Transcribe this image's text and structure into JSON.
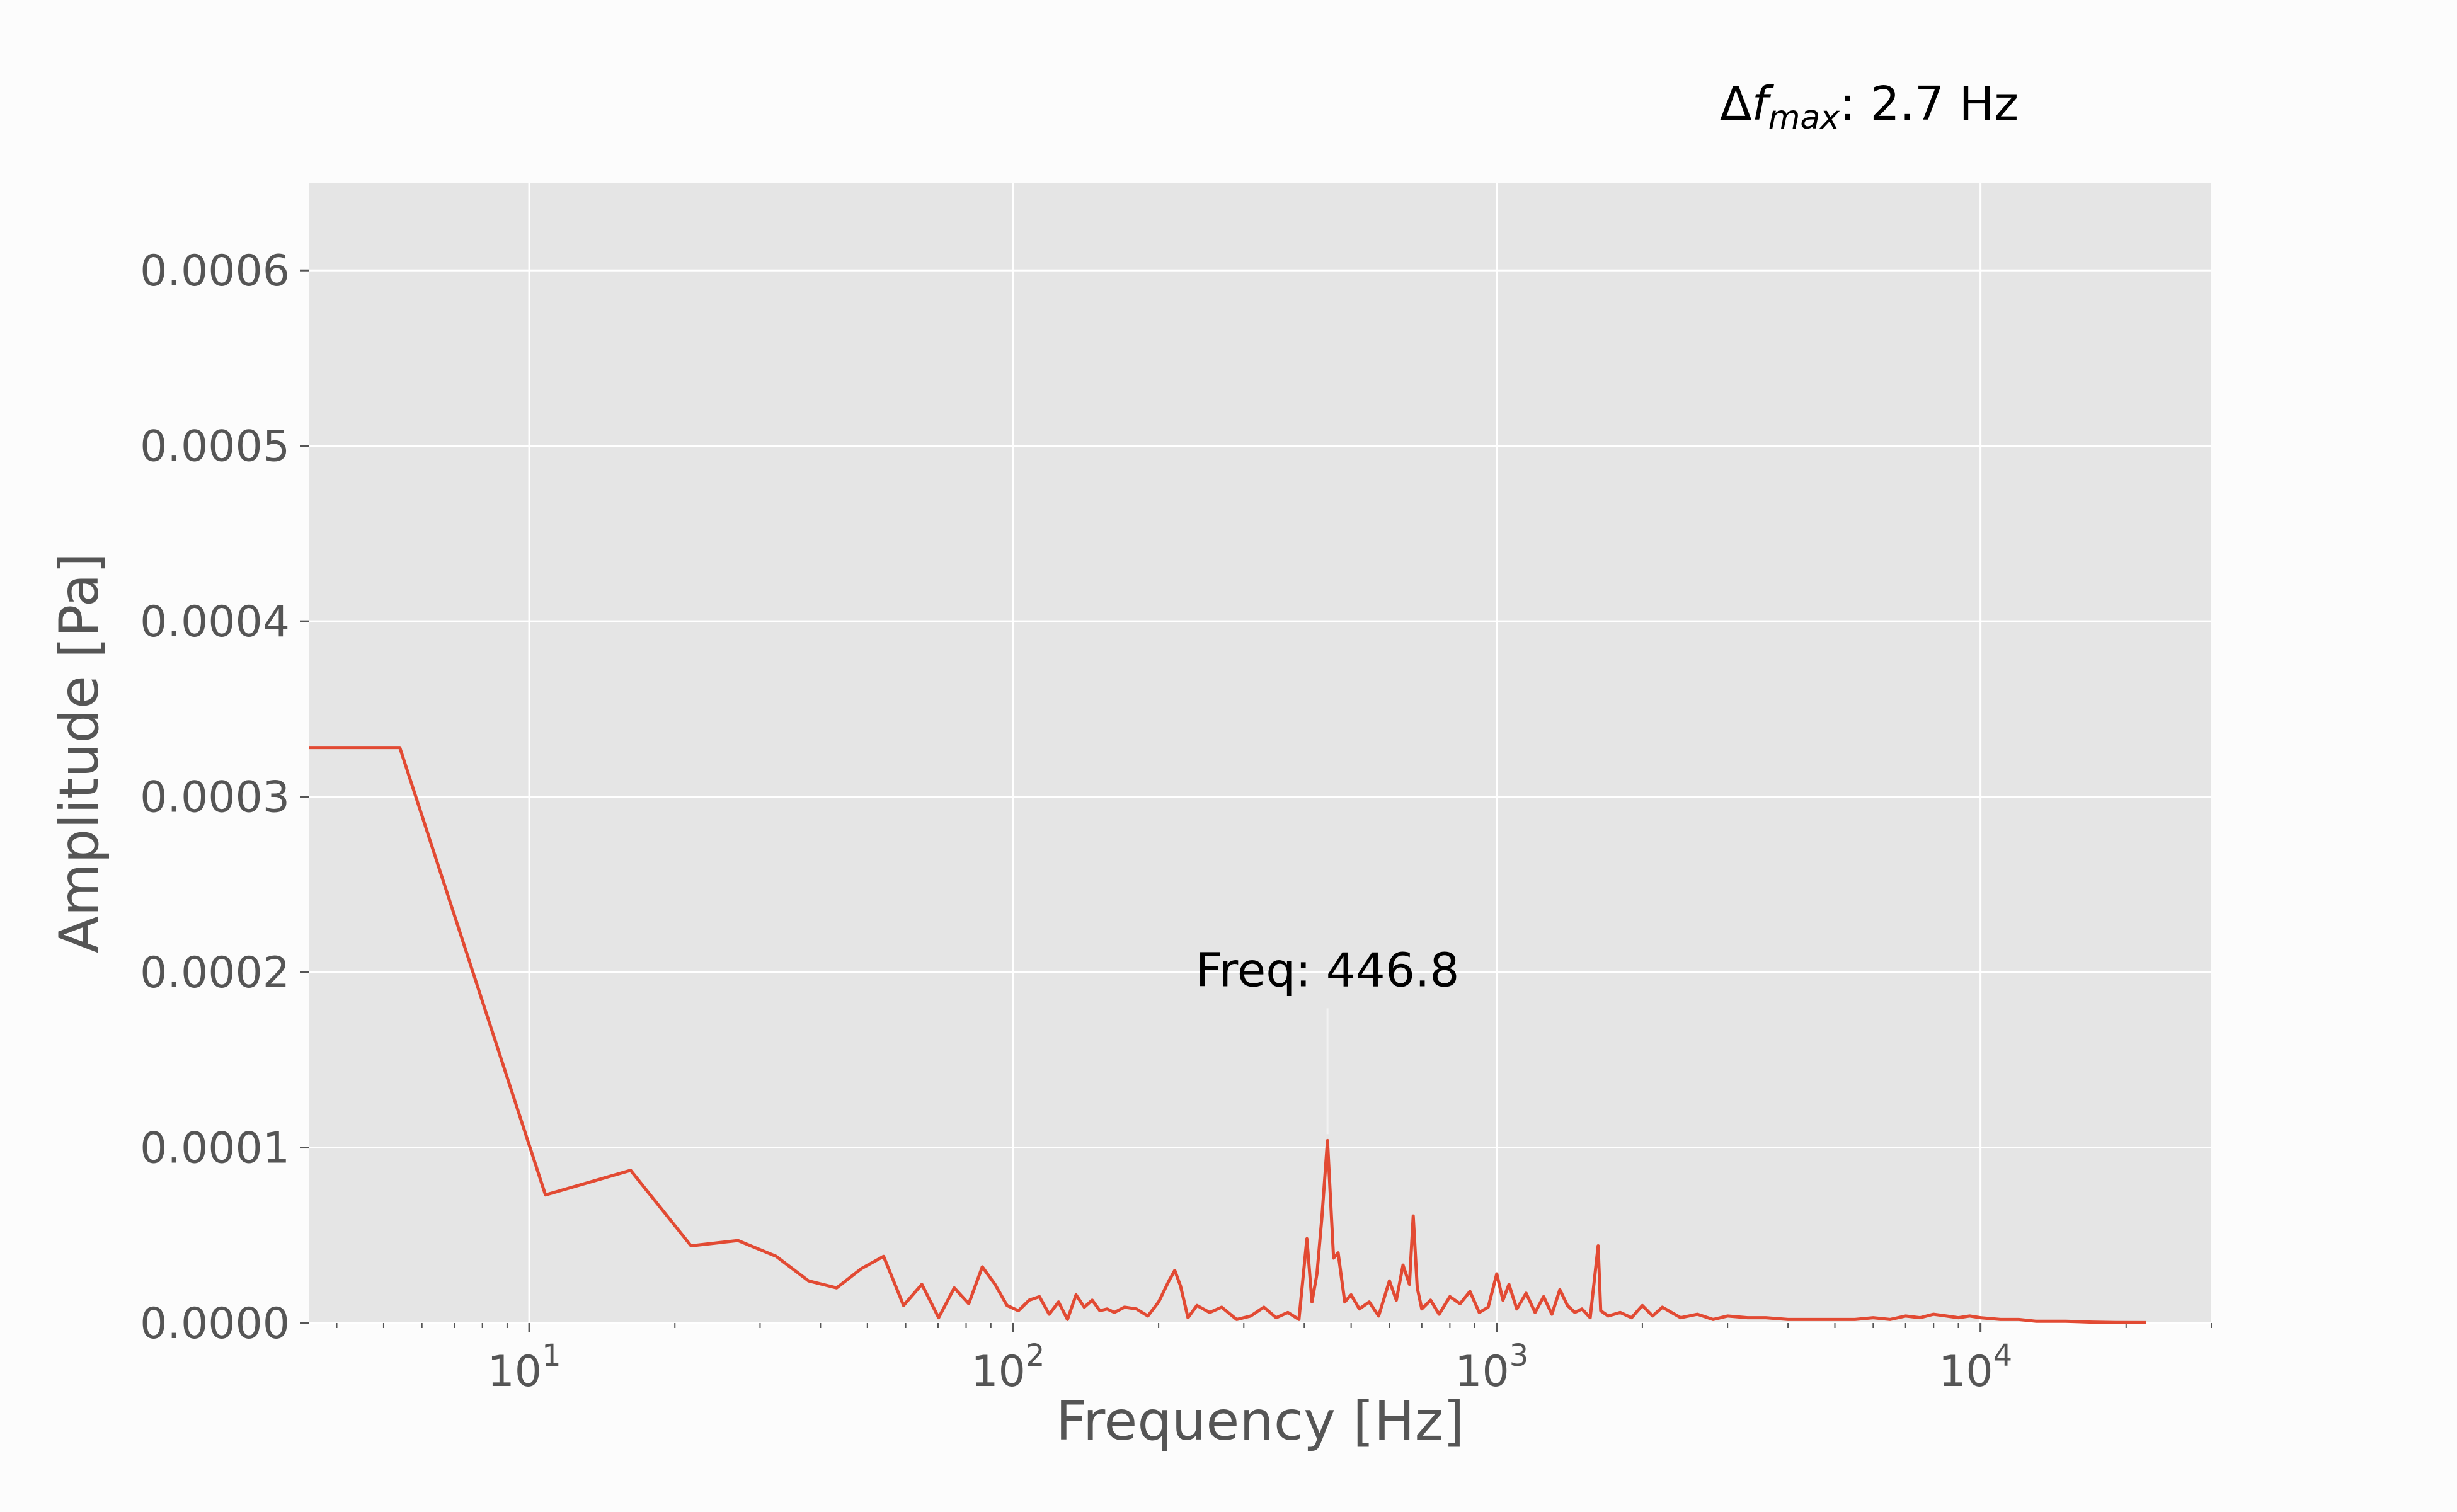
{
  "chart_data": {
    "type": "line",
    "title": "",
    "xlabel": "Frequency [Hz]",
    "ylabel": "Amplitude [Pa]",
    "x_scale": "log",
    "xlim": [
      3.5,
      30000
    ],
    "ylim": [
      0,
      0.00065
    ],
    "x_ticks": [
      {
        "exp": "1"
      },
      {
        "exp": "2"
      },
      {
        "exp": "3"
      },
      {
        "exp": "4"
      }
    ],
    "x_tick_base": "10",
    "y_ticks": [
      "0.0000",
      "0.0001",
      "0.0002",
      "0.0003",
      "0.0004",
      "0.0005",
      "0.0006"
    ],
    "grid": true,
    "colors": {
      "line": "#e24a33",
      "plot_bg": "#e5e5e5",
      "grid": "#ffffff",
      "text": "#555555"
    },
    "series": [
      {
        "x": [
          3.5,
          5.4,
          10.8,
          16.2,
          21.6,
          27.0,
          32.4,
          37.8,
          43.2,
          48.6,
          54.0,
          59.4,
          64.8,
          70.2,
          75.6,
          81.0,
          86.4,
          91.8,
          97.2,
          102.6,
          108.0,
          113.4,
          118.8,
          124.2,
          129.6,
          135.0,
          140.4,
          145.8,
          151.2,
          156.6,
          162.0,
          170.0,
          180.0,
          190.0,
          200.0,
          210.0,
          216.0,
          222.0,
          230.0,
          240.0,
          255.0,
          270.0,
          290.0,
          310.0,
          330.0,
          350.0,
          370.0,
          390.0,
          405.0,
          415.0,
          425.0,
          435.0,
          446.8,
          460.0,
          470.0,
          485.0,
          500.0,
          520.0,
          545.0,
          570.0,
          600.0,
          620.0,
          640.0,
          660.0,
          672.0,
          685.0,
          700.0,
          730.0,
          760.0,
          800.0,
          840.0,
          880.0,
          920.0,
          960.0,
          1000.0,
          1030.0,
          1060.0,
          1100.0,
          1150.0,
          1200.0,
          1250.0,
          1300.0,
          1350.0,
          1400.0,
          1450.0,
          1500.0,
          1560.0,
          1620.0,
          1640.0,
          1700.0,
          1800.0,
          1900.0,
          2000.0,
          2100.0,
          2200.0,
          2400.0,
          2600.0,
          2800.0,
          3000.0,
          3300.0,
          3600.0,
          4000.0,
          4500.0,
          5000.0,
          5500.0,
          6000.0,
          6500.0,
          7000.0,
          7500.0,
          8000.0,
          8500.0,
          9000.0,
          9500.0,
          10000.0,
          11000.0,
          12000.0,
          13000.0,
          15000.0,
          17000.0,
          19000.0,
          22000.0
        ],
        "y": [
          0.000328,
          0.000328,
          7.3e-05,
          8.7e-05,
          4.4e-05,
          4.7e-05,
          3.8e-05,
          2.4e-05,
          2e-05,
          3.1e-05,
          3.8e-05,
          1e-05,
          2.2e-05,
          3e-06,
          2e-05,
          1.1e-05,
          3.2e-05,
          2.2e-05,
          1e-05,
          7e-06,
          1.3e-05,
          1.5e-05,
          5e-06,
          1.2e-05,
          2e-06,
          1.6e-05,
          9e-06,
          1.3e-05,
          7e-06,
          8e-06,
          6e-06,
          9e-06,
          8e-06,
          4e-06,
          1.2e-05,
          2.4e-05,
          3e-05,
          2.1e-05,
          3e-06,
          1e-05,
          6e-06,
          9e-06,
          2e-06,
          4e-06,
          9e-06,
          3e-06,
          6e-06,
          2e-06,
          4.8e-05,
          1.2e-05,
          2.8e-05,
          6e-05,
          0.000104,
          3.7e-05,
          4e-05,
          1.2e-05,
          1.6e-05,
          8e-06,
          1.2e-05,
          4e-06,
          2.4e-05,
          1.3e-05,
          3.3e-05,
          2.2e-05,
          6.1e-05,
          2e-05,
          8e-06,
          1.3e-05,
          5e-06,
          1.5e-05,
          1.1e-05,
          1.8e-05,
          6e-06,
          9e-06,
          2.8e-05,
          1.3e-05,
          2.2e-05,
          8e-06,
          1.7e-05,
          6e-06,
          1.5e-05,
          5e-06,
          1.9e-05,
          1e-05,
          6e-06,
          8e-06,
          3e-06,
          4.4e-05,
          7e-06,
          4e-06,
          6e-06,
          3e-06,
          1e-05,
          4e-06,
          9e-06,
          3e-06,
          5e-06,
          2e-06,
          4e-06,
          3e-06,
          3e-06,
          2e-06,
          2e-06,
          2e-06,
          2e-06,
          3e-06,
          2e-06,
          4e-06,
          3e-06,
          5e-06,
          4e-06,
          3e-06,
          4e-06,
          3e-06,
          2e-06,
          2e-06,
          1e-06,
          1e-06,
          5e-07,
          3e-07,
          2e-07
        ]
      }
    ],
    "annotations": [
      {
        "text": "Freq: 446.8",
        "x": 446.8,
        "y": 0.000104
      }
    ],
    "header_note": {
      "prefix": "Δ",
      "symbol": "f",
      "subscript": "max",
      "suffix": ": 2.7 Hz"
    }
  }
}
